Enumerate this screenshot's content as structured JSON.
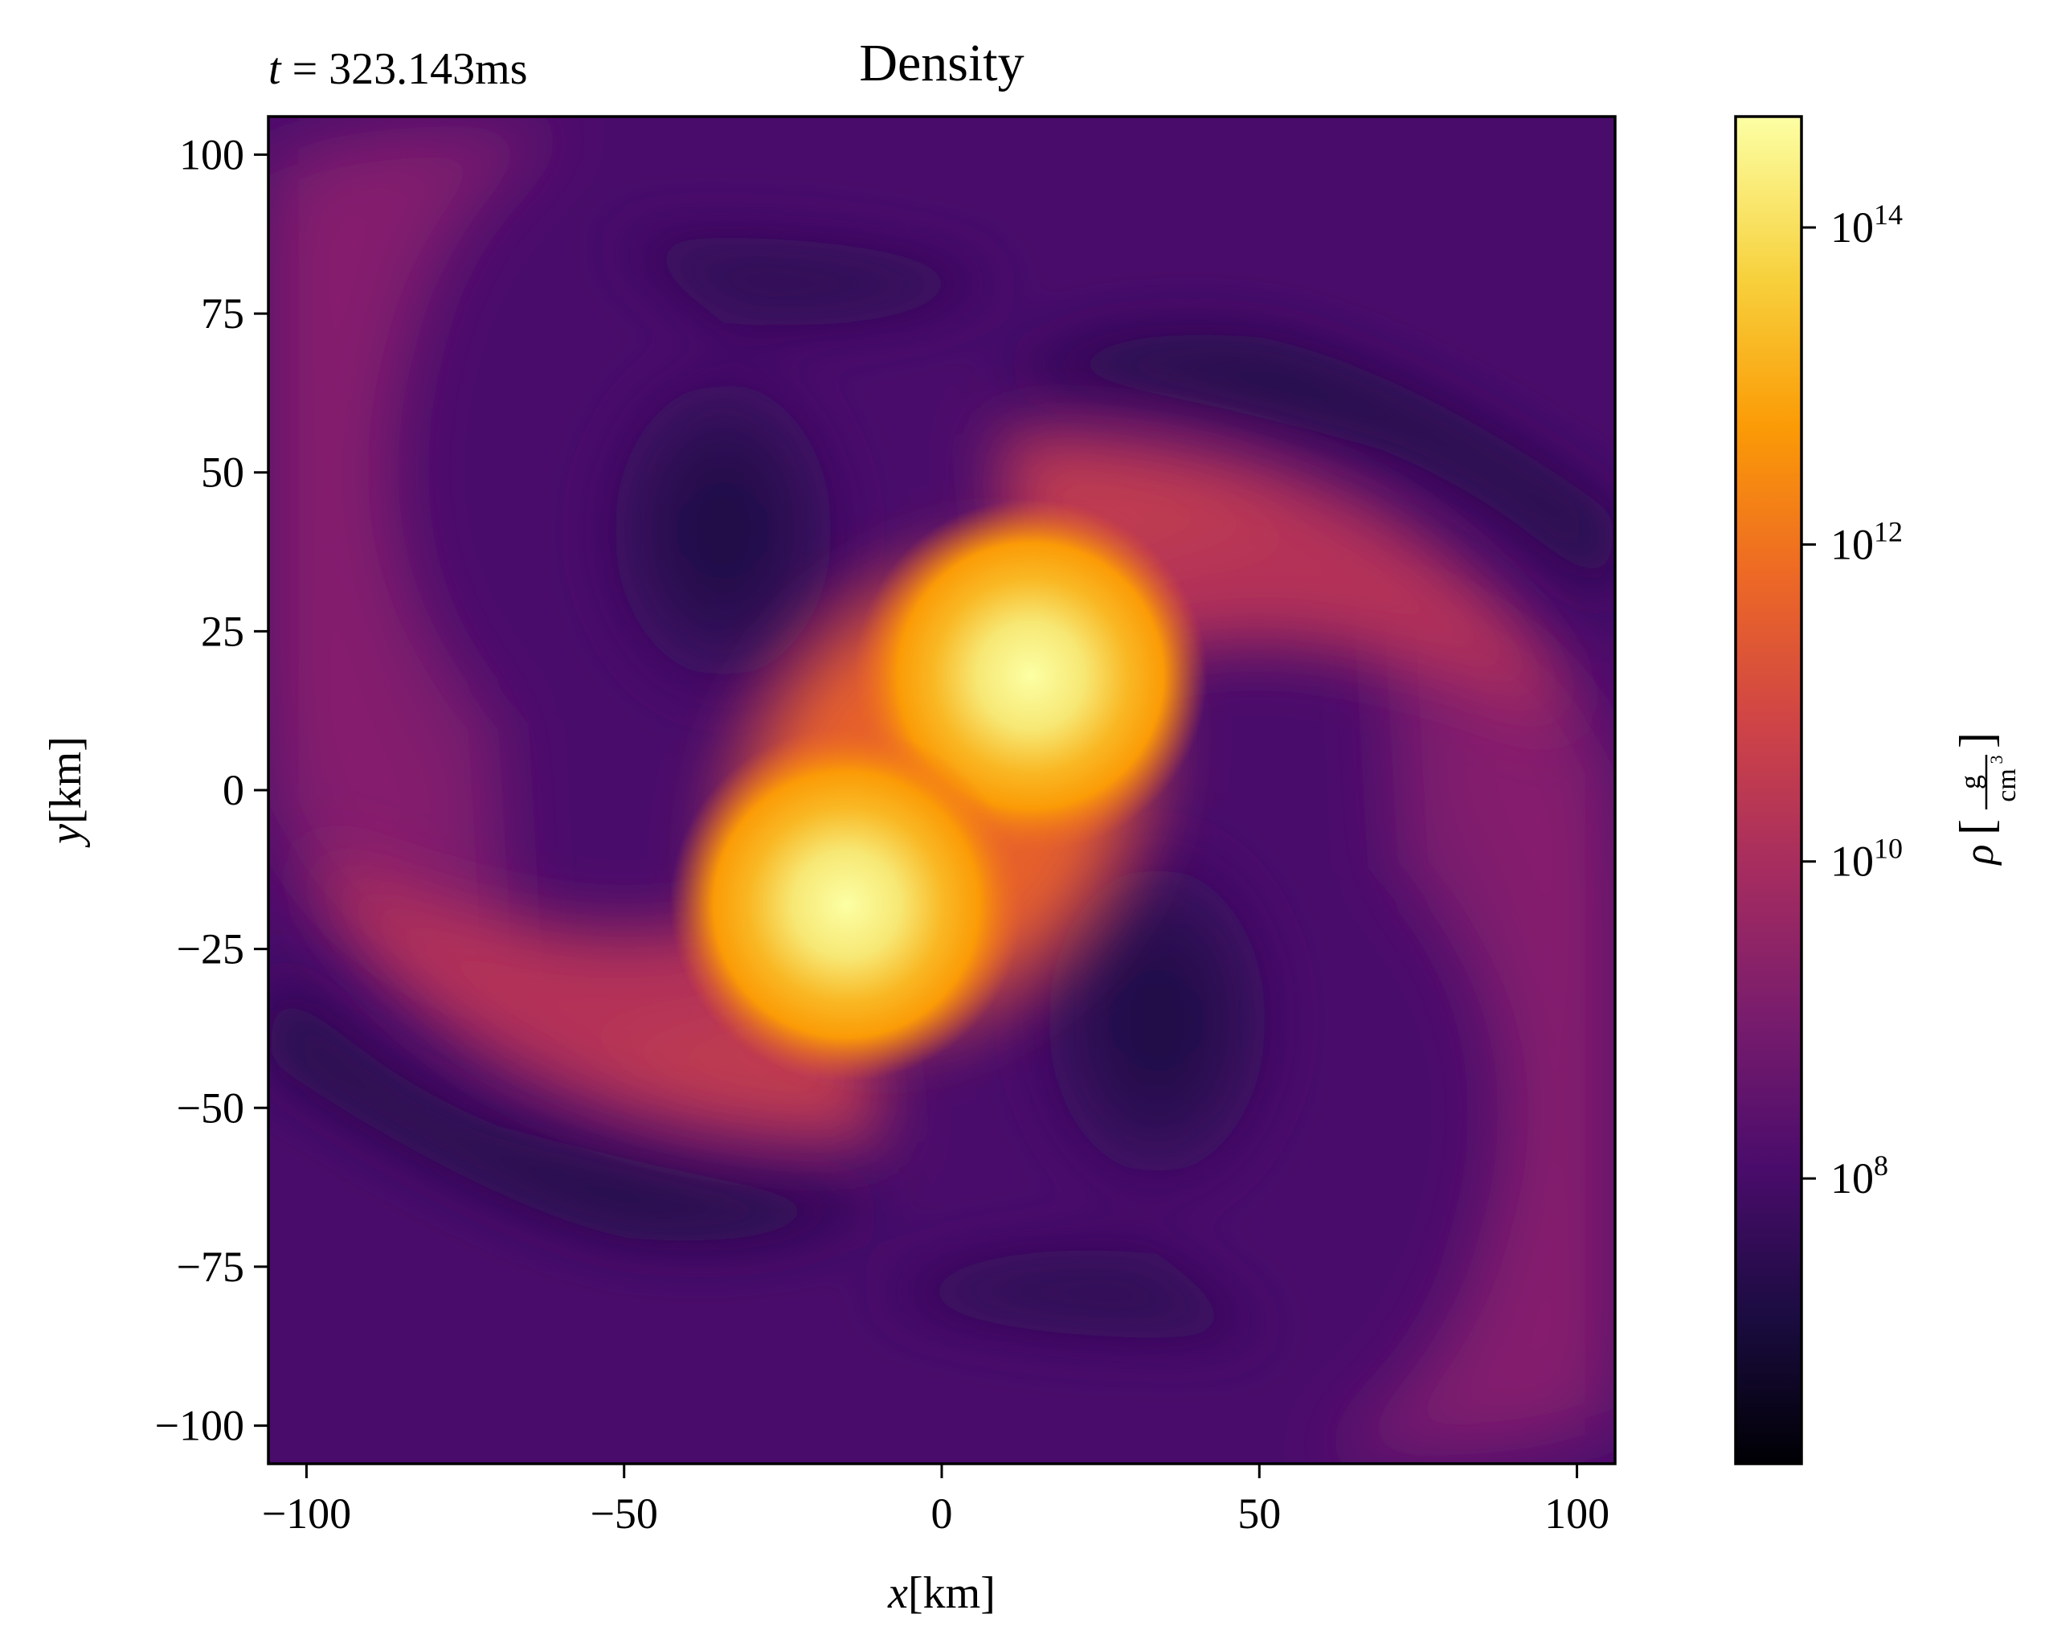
{
  "chart_data": [
    {
      "type": "heatmap",
      "title": "Density",
      "annotation": {
        "var": "t",
        "eq": " = ",
        "value": "323.143ms"
      },
      "xlabel": {
        "var": "x",
        "unit": "[km]"
      },
      "ylabel": {
        "var": "y",
        "unit": "[km]"
      },
      "xlim": [
        -106,
        106
      ],
      "ylim": [
        -106,
        106
      ],
      "xticks": [
        {
          "value": -100,
          "label": "−100"
        },
        {
          "value": -50,
          "label": "−50"
        },
        {
          "value": 0,
          "label": "0"
        },
        {
          "value": 50,
          "label": "50"
        },
        {
          "value": 100,
          "label": "100"
        }
      ],
      "yticks": [
        {
          "value": 100,
          "label": "100"
        },
        {
          "value": 75,
          "label": "75"
        },
        {
          "value": 50,
          "label": "50"
        },
        {
          "value": 25,
          "label": "25"
        },
        {
          "value": 0,
          "label": "0"
        },
        {
          "value": -25,
          "label": "−25"
        },
        {
          "value": -50,
          "label": "−50"
        },
        {
          "value": -75,
          "label": "−75"
        },
        {
          "value": -100,
          "label": "−100"
        }
      ],
      "grid": false,
      "colormap": "inferno",
      "scale": "log",
      "features": [
        {
          "name": "core-1",
          "x": 14,
          "y": 18,
          "log10_rho": 14.8
        },
        {
          "name": "core-2",
          "x": -15,
          "y": -18,
          "log10_rho": 14.8
        }
      ],
      "colorbar": {
        "label_symbol": "ρ",
        "label_num": "g",
        "label_den": "cm",
        "label_den_exp": "3",
        "range_log10": [
          6.2,
          14.7
        ],
        "ticks": [
          {
            "log10": 8,
            "base": "10",
            "exp": "8"
          },
          {
            "log10": 10,
            "base": "10",
            "exp": "10"
          },
          {
            "log10": 12,
            "base": "10",
            "exp": "12"
          },
          {
            "log10": 14,
            "base": "10",
            "exp": "14"
          }
        ],
        "colors": {
          "c0": "#000004",
          "c1": "#1b0c41",
          "c2": "#4a0c6b",
          "c3": "#781c6d",
          "c4": "#a52c60",
          "c5": "#cf4446",
          "c6": "#ed6925",
          "c7": "#fb9b06",
          "c8": "#f7d13d",
          "c9": "#fcffa4"
        }
      }
    }
  ]
}
